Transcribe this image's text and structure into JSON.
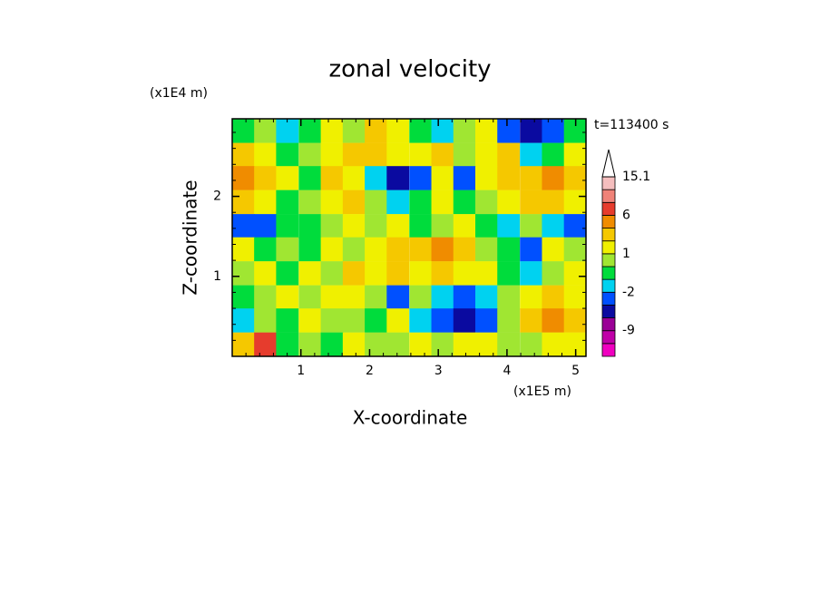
{
  "chart_data": {
    "type": "contourf",
    "title": "zonal velocity",
    "xlabel": "X-coordinate",
    "ylabel": "Z-coordinate",
    "x_unit": "(x1E5 m)",
    "y_unit": "(x1E4 m)",
    "annotation": "t=113400 s",
    "xlim": [
      0,
      5.15
    ],
    "ylim": [
      0,
      2.97
    ],
    "xticks": [
      1,
      2,
      3,
      4,
      5
    ],
    "yticks": [
      1,
      2
    ],
    "x": [
      0.16,
      0.48,
      0.8,
      1.13,
      1.45,
      1.77,
      2.09,
      2.41,
      2.74,
      3.06,
      3.38,
      3.7,
      4.02,
      4.35,
      4.67,
      4.99
    ],
    "y": [
      2.82,
      2.52,
      2.23,
      1.93,
      1.63,
      1.34,
      1.04,
      0.74,
      0.45,
      0.15
    ],
    "z": [
      [
        -0.5,
        0.5,
        -1.5,
        -0.5,
        1.5,
        0.5,
        2.5,
        1.5,
        -0.5,
        -1.5,
        0.5,
        1.5,
        -3,
        -5,
        -4,
        -1
      ],
      [
        2.5,
        1.5,
        -0.5,
        0.5,
        1.5,
        3,
        2.5,
        1.5,
        1.5,
        2.5,
        0.5,
        1.5,
        3,
        -1.5,
        -0.5,
        1.5
      ],
      [
        4.5,
        3,
        1.5,
        -0.5,
        2.5,
        1.5,
        -1.5,
        -5,
        -2.5,
        1.5,
        -4,
        1.5,
        2.5,
        3,
        4.5,
        2.5
      ],
      [
        3,
        1.5,
        -0.5,
        0.5,
        1.5,
        2.5,
        0.5,
        -1.5,
        -0.5,
        1.5,
        -0.5,
        0.5,
        1.5,
        2.5,
        3,
        1.5
      ],
      [
        -4,
        -2.5,
        -0.5,
        -0.5,
        0.5,
        1.5,
        0.5,
        1.5,
        -0.5,
        0.5,
        1.5,
        -0.5,
        -1.5,
        0.5,
        -1.5,
        -3
      ],
      [
        1.5,
        -0.5,
        0.5,
        -0.5,
        1.5,
        0.5,
        1.5,
        2.5,
        3,
        4.5,
        3,
        0.5,
        -0.5,
        -2.5,
        1.5,
        0.5
      ],
      [
        0.5,
        1.5,
        -0.5,
        1.5,
        0.5,
        2.5,
        1.5,
        2.5,
        1.5,
        3,
        1.5,
        1.5,
        -0.5,
        -1.5,
        0.5,
        1.5
      ],
      [
        -0.5,
        0.5,
        1.5,
        0.5,
        1.5,
        1.5,
        0.5,
        -2.5,
        0.5,
        -1.5,
        -2.5,
        -1.5,
        0.5,
        1.5,
        3,
        1.5
      ],
      [
        -1.5,
        0.5,
        -0.5,
        1.5,
        0.5,
        0.5,
        -0.5,
        1.5,
        -1.5,
        -4,
        -5,
        -2.5,
        0.5,
        2.5,
        4.5,
        2.5
      ],
      [
        3,
        7,
        -0.5,
        0.5,
        -0.5,
        1.5,
        0.5,
        0.5,
        1.5,
        0.5,
        1.5,
        1.5,
        0.5,
        0.5,
        1.5,
        1.5
      ]
    ],
    "levels": [
      -15,
      -12,
      -9,
      -6,
      -4,
      -2,
      -1,
      0,
      1,
      2,
      4,
      6,
      9,
      12,
      15.1
    ],
    "colors": [
      "#f000c0",
      "#c000a8",
      "#9a0096",
      "#0a0aa0",
      "#0050ff",
      "#00d2f0",
      "#00dc3c",
      "#a0e632",
      "#f0f000",
      "#f5c800",
      "#f08c00",
      "#e63c2d",
      "#f08278",
      "#f5bebe"
    ],
    "colorbar_ticks": [
      15.1,
      6,
      1,
      -2,
      -9
    ]
  }
}
